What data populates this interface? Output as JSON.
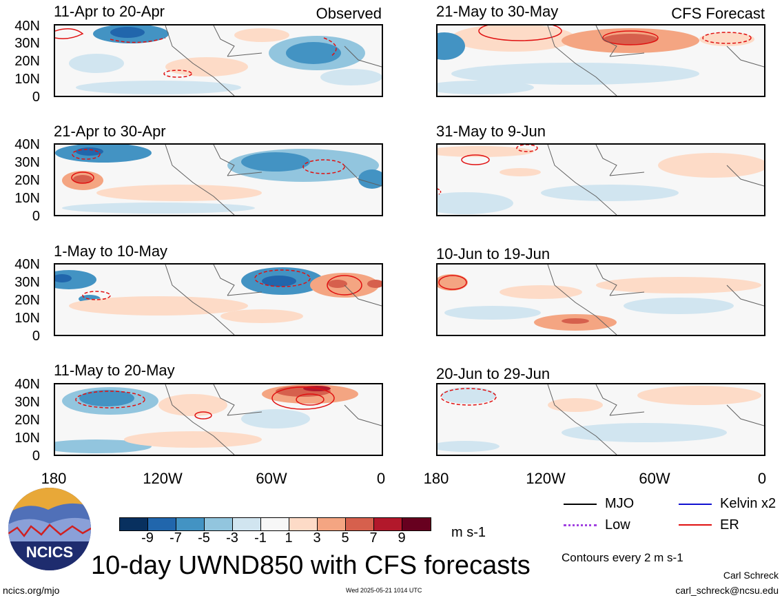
{
  "left_column": {
    "header": "Observed",
    "panels": [
      {
        "title": "11-Apr to 20-Apr"
      },
      {
        "title": "21-Apr to 30-Apr"
      },
      {
        "title": "1-May to 10-May"
      },
      {
        "title": "11-May to 20-May"
      }
    ]
  },
  "right_column": {
    "header": "CFS Forecast",
    "panels": [
      {
        "title": "21-May to 30-May"
      },
      {
        "title": "31-May to 9-Jun"
      },
      {
        "title": "10-Jun to 19-Jun"
      },
      {
        "title": "20-Jun to 29-Jun"
      }
    ]
  },
  "lat_labels": [
    "40N",
    "30N",
    "20N",
    "10N",
    "0"
  ],
  "lon_labels": [
    "180",
    "120W",
    "60W",
    "0"
  ],
  "colorbar": {
    "colors": [
      "#08305f",
      "#2166ac",
      "#4393c3",
      "#92c5de",
      "#d1e5f0",
      "#f7f7f7",
      "#fddbc7",
      "#f4a582",
      "#d6604d",
      "#b2182b",
      "#67001f"
    ],
    "ticks": [
      "-9",
      "-7",
      "-5",
      "-3",
      "-1",
      "1",
      "3",
      "5",
      "7",
      "9"
    ],
    "units": "m s-1"
  },
  "legend": {
    "items": [
      {
        "label": "MJO",
        "color": "#000000",
        "style": "solid"
      },
      {
        "label": "Kelvin x2",
        "color": "#1010d0",
        "style": "solid"
      },
      {
        "label": "Low",
        "color": "#a040e0",
        "style": "dotted"
      },
      {
        "label": "ER",
        "color": "#e01010",
        "style": "solid"
      }
    ],
    "note": "Contours every 2 m s-1"
  },
  "logo_text": "NCICS",
  "title": "10-day UWND850 with CFS forecasts",
  "url": "ncics.org/mjo",
  "timestamp": "Wed 2025-05-21 1014 UTC",
  "author": "Carl Schreck",
  "email": "carl_schreck@ncsu.edu"
}
